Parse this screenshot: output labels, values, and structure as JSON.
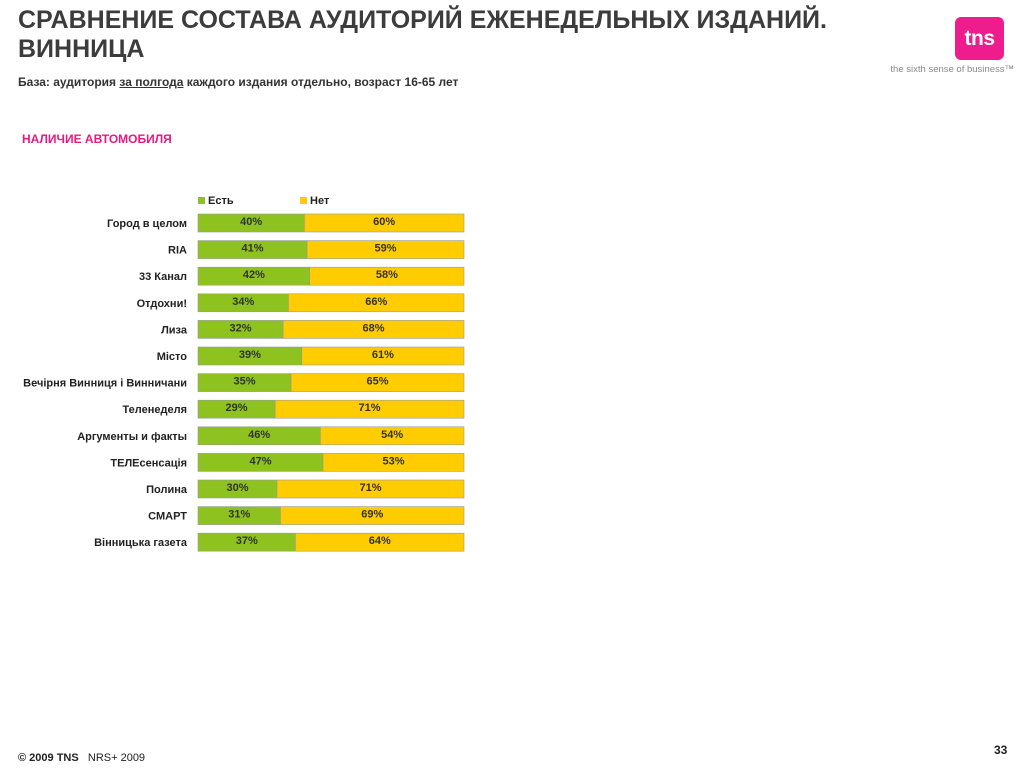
{
  "header": {
    "title": "СРАВНЕНИЕ СОСТАВА АУДИТОРИЙ ЕЖЕНЕДЕЛЬНЫХ ИЗДАНИЙ. ВИННИЦА",
    "subtitle_prefix": "База: аудитория ",
    "subtitle_underlined": "за полгода",
    "subtitle_suffix": " каждого издания отдельно, возраст 16-65 лет"
  },
  "logo": {
    "text": "tns",
    "tagline": "the sixth sense of business™",
    "color": "#ee1c8c"
  },
  "section_title": "НАЛИЧИЕ АВТОМОБИЛЯ",
  "chart_data": {
    "type": "bar",
    "orientation": "horizontal",
    "stacked": true,
    "percent_stacked": true,
    "title": "НАЛИЧИЕ АВТОМОБИЛЯ",
    "legend_position": "top",
    "grid": false,
    "categories": [
      "Город в целом",
      "RIA",
      "33 Канал",
      "Отдохни!",
      "Лиза",
      "Місто",
      "Вечірня Винниця і Винничани",
      "Теленеделя",
      "Аргументы и факты",
      "ТЕЛЕсенсація",
      "Полина",
      "СМАРТ",
      "Вінницька газета"
    ],
    "series": [
      {
        "name": "Есть",
        "color": "#8dc21f",
        "values": [
          40,
          41,
          42,
          34,
          32,
          39,
          35,
          29,
          46,
          47,
          30,
          31,
          37
        ]
      },
      {
        "name": "Нет",
        "color": "#ffcc00",
        "values": [
          60,
          59,
          58,
          66,
          68,
          61,
          65,
          71,
          54,
          53,
          71,
          69,
          64
        ]
      }
    ],
    "value_suffix": "%"
  },
  "footer": {
    "copyright": "© 2009 TNS",
    "source": "NRS+ 2009",
    "page_number": "33"
  }
}
